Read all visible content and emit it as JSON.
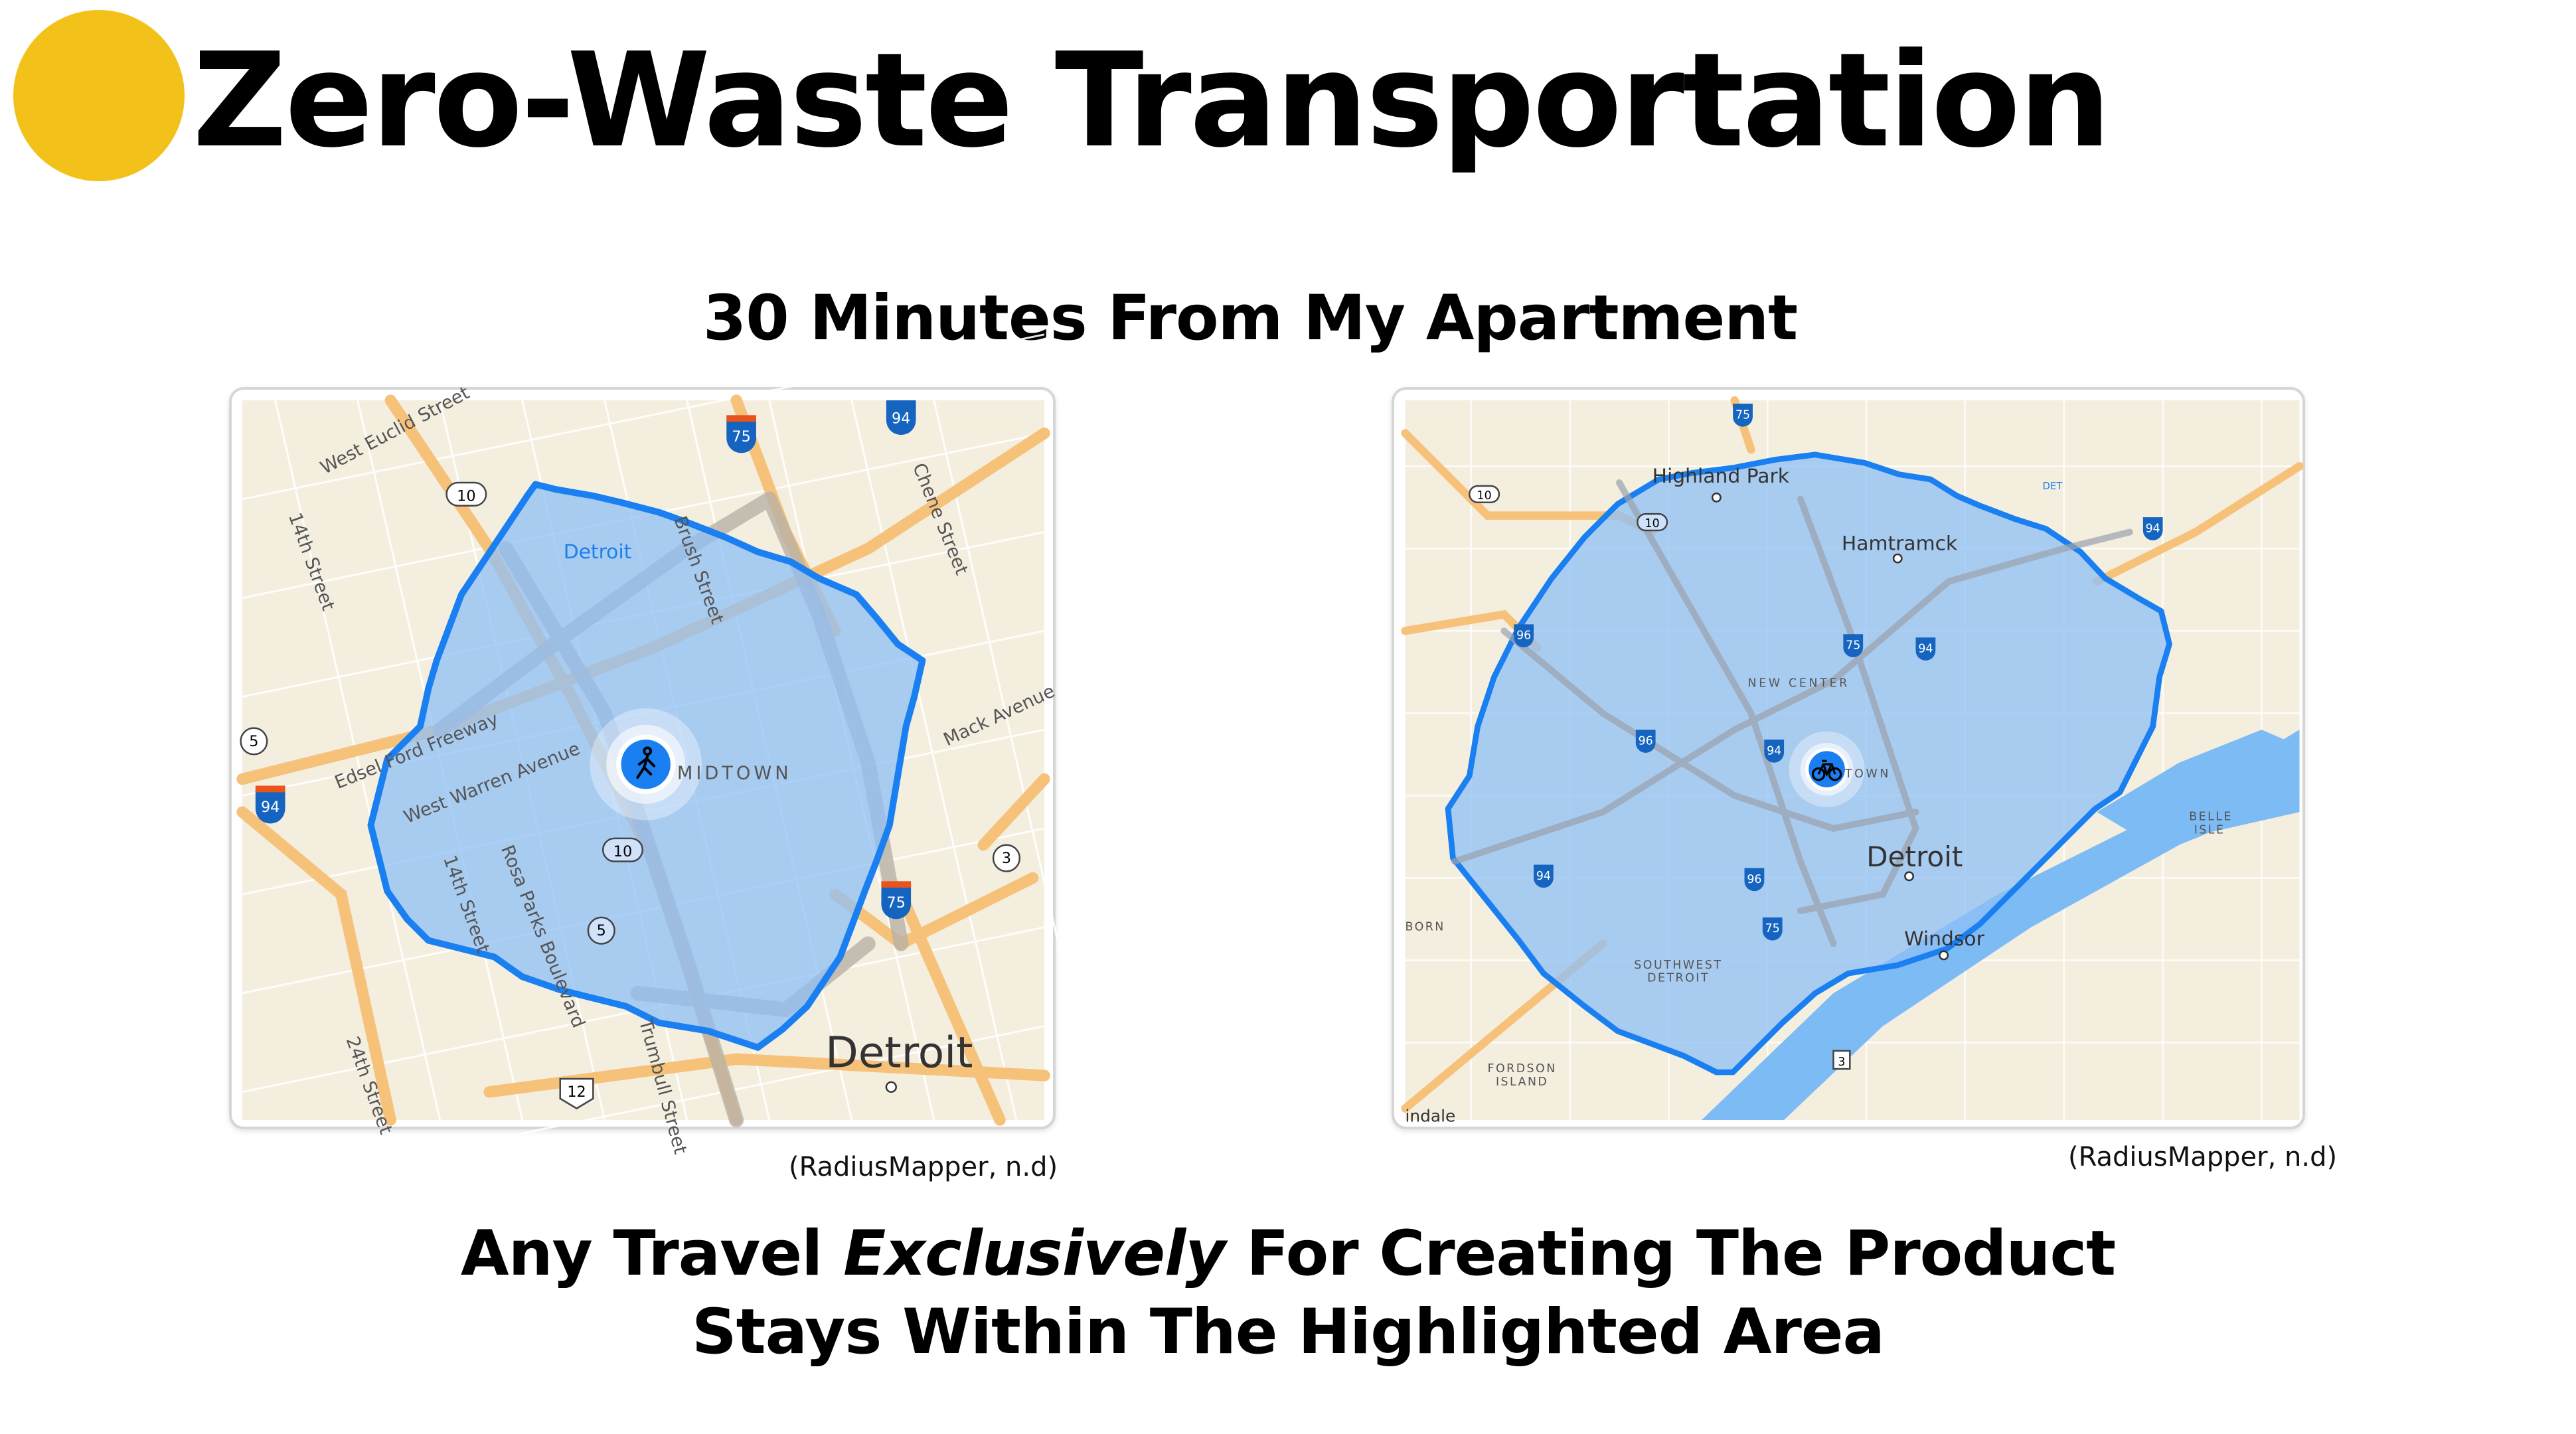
{
  "header": {
    "title": "Zero-Waste Transportation",
    "accent_color": "#F2C21B"
  },
  "subtitle": "30 Minutes From My Apartment",
  "maps": [
    {
      "mode_icon": "walking-person-icon",
      "labels": [
        "West Euclid Street",
        "14th Street",
        "Detroit",
        "Brush Street",
        "Chene Street",
        "Edsel Ford Freeway",
        "West Warren Avenue",
        "MIDTOWN",
        "Mack Avenue",
        "14th Street",
        "Rosa Parks Boulevard",
        "24th Street",
        "Trumbull Street",
        "Detroit"
      ],
      "shields": [
        "10",
        "10",
        "5",
        "5",
        "3",
        "12",
        "75",
        "75",
        "94",
        "94"
      ],
      "caption": "(RadiusMapper, n.d)"
    },
    {
      "mode_icon": "bicycle-icon",
      "labels": [
        "Highland Park",
        "Hamtramck",
        "NEW CENTER",
        "TOWN",
        "Detroit",
        "Windsor",
        "SOUTHWEST",
        "DETROIT",
        "BELLE",
        "ISLE",
        "FORDSON",
        "ISLAND",
        "BORN",
        "indale",
        "DET"
      ],
      "shields": [
        "75",
        "10",
        "10",
        "94",
        "96",
        "75",
        "94",
        "96",
        "94",
        "94",
        "96",
        "75",
        "3"
      ],
      "caption": "(RadiusMapper, n.d)"
    }
  ],
  "colors": {
    "map_bg": "#F4EEDF",
    "isochrone_fill": "#8FBFF5",
    "isochrone_stroke": "#1A7FF0",
    "road": "#F6C27A",
    "water": "#7DBBF5"
  },
  "footer": {
    "line1_before": "Any Travel ",
    "line1_emphasis": "Exclusively",
    "line1_after": " For Creating The Product",
    "line2": "Stays Within The Highlighted Area"
  }
}
